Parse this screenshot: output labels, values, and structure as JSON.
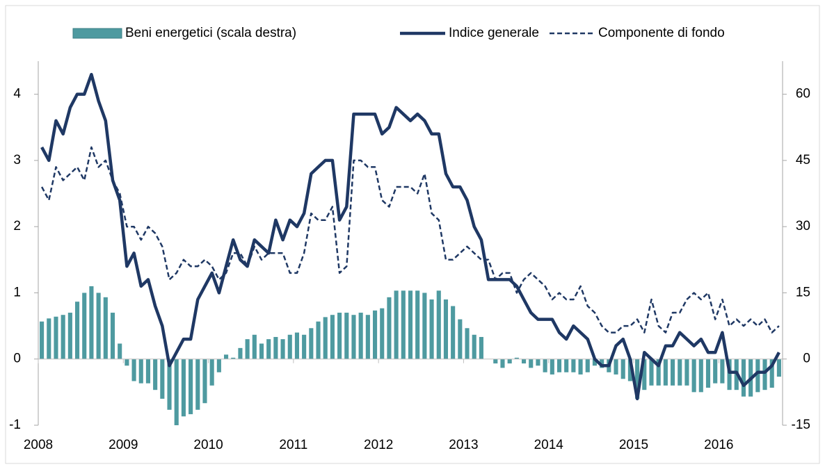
{
  "chart_data": {
    "type": "combo",
    "categories": [
      "2008",
      null,
      null,
      null,
      null,
      null,
      null,
      null,
      null,
      null,
      null,
      null,
      "2009",
      null,
      null,
      null,
      null,
      null,
      null,
      null,
      null,
      null,
      null,
      null,
      "2010",
      null,
      null,
      null,
      null,
      null,
      null,
      null,
      null,
      null,
      null,
      null,
      "2011",
      null,
      null,
      null,
      null,
      null,
      null,
      null,
      null,
      null,
      null,
      null,
      "2012",
      null,
      null,
      null,
      null,
      null,
      null,
      null,
      null,
      null,
      null,
      null,
      "2013",
      null,
      null,
      null,
      null,
      null,
      null,
      null,
      null,
      null,
      null,
      null,
      "2014",
      null,
      null,
      null,
      null,
      null,
      null,
      null,
      null,
      null,
      null,
      null,
      "2015",
      null,
      null,
      null,
      null,
      null,
      null,
      null,
      null,
      null,
      null,
      null,
      "2016",
      null,
      null,
      null,
      null,
      null,
      null,
      null,
      null
    ],
    "series": [
      {
        "name": "Beni energetici (scala destra)",
        "type": "bar",
        "axis": "y2",
        "color": "#4e9aa0",
        "values": [
          8.5,
          9.2,
          9.6,
          10,
          10.5,
          13,
          15,
          16.5,
          15,
          14,
          10.5,
          3.5,
          -1.5,
          -5,
          -5.5,
          -5.5,
          -7,
          -9,
          -11.5,
          -15,
          -13,
          -12.5,
          -11.5,
          -10,
          -6,
          -3,
          1,
          0.3,
          2.5,
          4.5,
          5.5,
          3.5,
          4.5,
          5,
          4.5,
          5.5,
          6,
          5.5,
          7,
          8.5,
          9.5,
          10,
          10.5,
          10.5,
          10,
          10.5,
          10,
          11,
          11.5,
          14,
          15.5,
          15.5,
          15.5,
          15.5,
          15,
          13.5,
          15.5,
          13.5,
          12,
          9,
          7,
          5.5,
          5,
          0,
          -1,
          -2,
          -1,
          0.3,
          -1,
          -2,
          -1.5,
          -3,
          -3.5,
          -3,
          -3,
          -3,
          -3.5,
          -3,
          -1.5,
          -2,
          -3,
          -3.5,
          -4.5,
          -5,
          -9,
          -7,
          -6,
          -6,
          -6,
          -6,
          -6,
          -6,
          -7.5,
          -7.5,
          -6.5,
          -5.5,
          -5.5,
          -7,
          -7,
          -8.5,
          -8.5,
          -7.5,
          -7,
          -6.5,
          -4
        ]
      },
      {
        "name": "Indice generale",
        "type": "line",
        "style": "solid",
        "color": "#1f3864",
        "values": [
          3.2,
          3.0,
          3.6,
          3.4,
          3.8,
          4.0,
          4.0,
          4.3,
          3.9,
          3.6,
          2.7,
          2.4,
          1.4,
          1.6,
          1.1,
          1.2,
          0.8,
          0.5,
          -0.1,
          0.1,
          0.3,
          0.3,
          0.9,
          1.1,
          1.3,
          1.0,
          1.4,
          1.8,
          1.5,
          1.4,
          1.8,
          1.7,
          1.6,
          2.1,
          1.8,
          2.1,
          2.0,
          2.2,
          2.8,
          2.9,
          3.0,
          3.0,
          2.1,
          2.3,
          3.7,
          3.7,
          3.7,
          3.7,
          3.4,
          3.5,
          3.8,
          3.7,
          3.6,
          3.7,
          3.6,
          3.4,
          3.4,
          2.8,
          2.6,
          2.6,
          2.4,
          2.0,
          1.8,
          1.2,
          1.2,
          1.2,
          1.2,
          1.1,
          0.9,
          0.7,
          0.6,
          0.6,
          0.6,
          0.4,
          0.3,
          0.5,
          0.4,
          0.3,
          0.0,
          -0.1,
          -0.1,
          0.2,
          0.3,
          0.0,
          -0.6,
          0.1,
          0.0,
          -0.1,
          0.2,
          0.2,
          0.4,
          0.3,
          0.2,
          0.3,
          0.1,
          0.1,
          0.4,
          -0.2,
          -0.2,
          -0.4,
          -0.3,
          -0.2,
          -0.2,
          -0.1,
          0.1
        ]
      },
      {
        "name": "Componente di fondo",
        "type": "line",
        "style": "dashed",
        "color": "#1f3864",
        "values": [
          2.6,
          2.4,
          2.9,
          2.7,
          2.8,
          2.9,
          2.7,
          3.2,
          2.9,
          3.0,
          2.7,
          2.5,
          2.0,
          2.0,
          1.8,
          2.0,
          1.9,
          1.7,
          1.2,
          1.3,
          1.5,
          1.4,
          1.4,
          1.5,
          1.4,
          1.2,
          1.3,
          1.6,
          1.6,
          1.4,
          1.7,
          1.5,
          1.6,
          1.6,
          1.6,
          1.3,
          1.3,
          1.6,
          2.2,
          2.1,
          2.1,
          2.3,
          1.3,
          1.4,
          3.0,
          3.0,
          2.9,
          2.9,
          2.4,
          2.3,
          2.6,
          2.6,
          2.6,
          2.5,
          2.8,
          2.2,
          2.1,
          1.5,
          1.5,
          1.6,
          1.7,
          1.6,
          1.5,
          1.5,
          1.2,
          1.3,
          1.3,
          1.0,
          1.2,
          1.3,
          1.2,
          1.1,
          0.9,
          1.0,
          0.9,
          0.9,
          1.1,
          0.8,
          0.7,
          0.5,
          0.4,
          0.4,
          0.5,
          0.5,
          0.6,
          0.4,
          0.9,
          0.5,
          0.4,
          0.7,
          0.7,
          0.9,
          1.0,
          0.9,
          1.0,
          0.6,
          0.9,
          0.5,
          0.6,
          0.5,
          0.6,
          0.5,
          0.6,
          0.4,
          0.5
        ]
      }
    ],
    "ylim": [
      -1,
      4.5
    ],
    "yticks": [
      -1,
      0,
      1,
      2,
      3,
      4
    ],
    "y2lim": [
      -15,
      67.5
    ],
    "y2ticks": [
      -15,
      0,
      15,
      30,
      45,
      60
    ],
    "grid": false,
    "legend": "top"
  }
}
